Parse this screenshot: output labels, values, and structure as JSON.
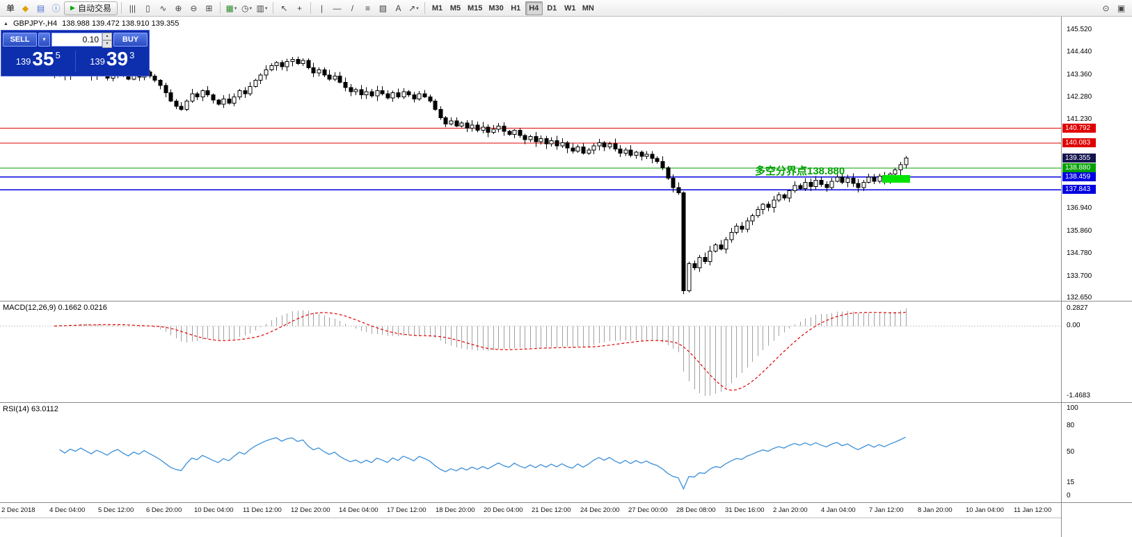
{
  "toolbar": {
    "items": [
      {
        "type": "text",
        "name": "order-menu-label",
        "label": "单"
      },
      {
        "type": "icon",
        "name": "new-order-icon",
        "glyph": "◆",
        "color": "#e0a000"
      },
      {
        "type": "icon",
        "name": "profiles-icon",
        "glyph": "▤",
        "color": "#4a6fd0"
      },
      {
        "type": "icon",
        "name": "info-icon",
        "glyph": "ⓘ",
        "color": "#3a6fd0"
      },
      {
        "type": "button",
        "name": "autotrade-button",
        "glyph": "▶",
        "glyph_color": "#00a800",
        "label": "自动交易"
      },
      {
        "type": "sep"
      },
      {
        "type": "icon",
        "name": "bar-chart-type-icon",
        "glyph": "|||"
      },
      {
        "type": "icon",
        "name": "candlestick-type-icon",
        "glyph": "▯"
      },
      {
        "type": "icon",
        "name": "line-chart-type-icon",
        "glyph": "∿"
      },
      {
        "type": "icon",
        "name": "zoom-in-icon",
        "glyph": "⊕"
      },
      {
        "type": "icon",
        "name": "zoom-out-icon",
        "glyph": "⊖"
      },
      {
        "type": "icon",
        "name": "tile-windows-icon",
        "glyph": "⊞"
      },
      {
        "type": "sep"
      },
      {
        "type": "icon",
        "name": "new-chart-icon",
        "glyph": "▦",
        "color": "#2e8b2e",
        "caret": true
      },
      {
        "type": "icon",
        "name": "period-icon",
        "glyph": "◷",
        "caret": true
      },
      {
        "type": "icon",
        "name": "template-icon",
        "glyph": "▥",
        "caret": true
      },
      {
        "type": "sep"
      },
      {
        "type": "icon",
        "name": "cursor-icon",
        "glyph": "↖"
      },
      {
        "type": "icon",
        "name": "crosshair-icon",
        "glyph": "+"
      },
      {
        "type": "sep"
      },
      {
        "type": "icon",
        "name": "vertical-line-icon",
        "glyph": "|"
      },
      {
        "type": "icon",
        "name": "horizontal-line-icon",
        "glyph": "—"
      },
      {
        "type": "icon",
        "name": "trendline-icon",
        "glyph": "/"
      },
      {
        "type": "icon",
        "name": "fibonacci-icon",
        "glyph": "≡"
      },
      {
        "type": "icon",
        "name": "shapes-icon",
        "glyph": "▧"
      },
      {
        "type": "icon",
        "name": "text-tool-icon",
        "glyph": "A"
      },
      {
        "type": "icon",
        "name": "arrow-tool-icon",
        "glyph": "↗",
        "caret": true
      },
      {
        "type": "sep"
      },
      {
        "type": "tf-group"
      }
    ],
    "timeframes": {
      "options": [
        "M1",
        "M5",
        "M15",
        "M30",
        "H1",
        "H4",
        "D1",
        "W1",
        "MN"
      ],
      "active": "H4"
    },
    "right_items": [
      {
        "type": "icon",
        "name": "search-icon",
        "glyph": "⊙"
      },
      {
        "type": "icon",
        "name": "new-window-icon",
        "glyph": "▣"
      }
    ]
  },
  "chart": {
    "collapse_icon": "▲",
    "title": "GBPJPY-,H4",
    "ohlc": "138.988 139.472 138.910 139.355"
  },
  "trade_panel": {
    "sell_label": "SELL",
    "buy_label": "BUY",
    "dropdown_icon": "▾",
    "lot": "0.10",
    "sell_prefix": "139",
    "sell_big": "35",
    "sell_sup": "5",
    "buy_prefix": "139",
    "buy_big": "39",
    "buy_sup": "3"
  },
  "annotation": {
    "text": "多空分界点138.880",
    "text_color": "#00a000",
    "marker_color": "#00e400"
  },
  "indicators": {
    "macd_label": "MACD(12,26,9) 0.1662 0.0216",
    "rsi_label": "RSI(14) 63.0112"
  },
  "chart_data": {
    "type": "candlestick",
    "symbol": "GBPJPY-",
    "timeframe": "H4",
    "last_bar": {
      "open": 138.988,
      "high": 139.472,
      "low": 138.91,
      "close": 139.355
    },
    "current_price": 139.355,
    "closes": [
      143.35,
      143.55,
      143.3,
      143.6,
      143.45,
      143.7,
      143.5,
      143.3,
      143.55,
      143.4,
      143.2,
      143.45,
      143.6,
      143.35,
      143.15,
      143.4,
      143.25,
      143.5,
      143.3,
      143.1,
      142.85,
      142.5,
      142.1,
      141.85,
      141.7,
      142.1,
      142.45,
      142.3,
      142.6,
      142.4,
      142.15,
      141.95,
      142.2,
      142.0,
      142.3,
      142.6,
      142.45,
      142.8,
      143.1,
      143.35,
      143.6,
      143.8,
      143.95,
      143.75,
      144.0,
      144.1,
      143.9,
      144.05,
      143.7,
      143.45,
      143.6,
      143.35,
      143.15,
      143.3,
      143.0,
      142.75,
      142.55,
      142.65,
      142.4,
      142.55,
      142.35,
      142.6,
      142.45,
      142.25,
      142.5,
      142.3,
      142.55,
      142.4,
      142.2,
      142.45,
      142.3,
      142.1,
      141.7,
      141.3,
      141.0,
      141.15,
      140.9,
      141.05,
      140.8,
      140.95,
      140.7,
      140.85,
      140.6,
      140.75,
      140.9,
      140.65,
      140.5,
      140.7,
      140.45,
      140.25,
      140.4,
      140.15,
      140.3,
      140.05,
      140.2,
      139.95,
      140.1,
      139.85,
      139.7,
      139.9,
      139.6,
      139.75,
      139.95,
      140.1,
      139.9,
      140.05,
      139.8,
      139.6,
      139.75,
      139.5,
      139.65,
      139.45,
      139.55,
      139.35,
      139.2,
      138.9,
      138.4,
      137.95,
      137.7,
      133.0,
      134.3,
      134.1,
      134.6,
      134.4,
      134.9,
      135.2,
      135.0,
      135.45,
      135.8,
      136.1,
      135.95,
      136.35,
      136.6,
      136.9,
      137.15,
      137.0,
      137.35,
      137.6,
      137.45,
      137.8,
      138.05,
      137.9,
      138.2,
      138.0,
      138.3,
      138.1,
      137.95,
      138.25,
      138.45,
      138.2,
      138.4,
      138.15,
      137.95,
      138.2,
      138.45,
      138.25,
      138.5,
      138.35,
      138.6,
      138.8,
      139.05,
      139.36
    ],
    "crash_low": 132.83,
    "hlines": [
      {
        "price": 140.792,
        "color": "#e00000",
        "w": 1
      },
      {
        "price": 140.083,
        "color": "#e00000",
        "w": 1
      },
      {
        "price": 138.88,
        "color": "#00a000",
        "w": 1
      },
      {
        "price": 138.459,
        "color": "#0000e0",
        "w": 1.4
      },
      {
        "price": 137.843,
        "color": "#0000e0",
        "w": 1.4
      }
    ],
    "price_axis": {
      "labels": [
        {
          "text": "145.520",
          "price": 145.52
        },
        {
          "text": "144.440",
          "price": 144.44
        },
        {
          "text": "143.360",
          "price": 143.36
        },
        {
          "text": "142.280",
          "price": 142.28
        },
        {
          "text": "141.230",
          "price": 141.23
        },
        {
          "text": "136.940",
          "price": 136.94
        },
        {
          "text": "135.860",
          "price": 135.86
        },
        {
          "text": "134.780",
          "price": 134.78
        },
        {
          "text": "133.700",
          "price": 133.7
        },
        {
          "text": "132.650",
          "price": 132.65
        }
      ],
      "badges": [
        {
          "text": "140.792",
          "price": 140.792,
          "bg": "#e00000"
        },
        {
          "text": "140.083",
          "price": 140.083,
          "bg": "#e00000"
        },
        {
          "text": "139.355",
          "price": 139.355,
          "bg": "#13134d"
        },
        {
          "text": "138.880",
          "price": 138.88,
          "bg": "#00a000"
        },
        {
          "text": "138.459",
          "price": 138.459,
          "bg": "#0000e0"
        },
        {
          "text": "137.843",
          "price": 137.843,
          "bg": "#0000e0"
        }
      ]
    },
    "macd": {
      "params": "12,26,9",
      "values": "0.1662 0.0216",
      "histogram_color": "#a0a0a0",
      "signal_color": "#e00000",
      "axis_labels": [
        {
          "text": "0.2827",
          "at": "max"
        },
        {
          "text": "0.00",
          "at": "zero"
        },
        {
          "text": "-1.4683",
          "at": "min"
        }
      ]
    },
    "rsi": {
      "period": 14,
      "value": 63.0112,
      "line_color": "#3a8fd8",
      "axis_labels": [
        {
          "text": "100",
          "v": 100
        },
        {
          "text": "80",
          "v": 80
        },
        {
          "text": "50",
          "v": 50
        },
        {
          "text": "15",
          "v": 15
        },
        {
          "text": "0",
          "v": 0
        }
      ]
    },
    "time_labels": [
      "2 Dec 2018",
      "4 Dec 04:00",
      "5 Dec 12:00",
      "6 Dec 20:00",
      "10 Dec 04:00",
      "11 Dec 12:00",
      "12 Dec 20:00",
      "14 Dec 04:00",
      "17 Dec 12:00",
      "18 Dec 20:00",
      "20 Dec 04:00",
      "21 Dec 12:00",
      "24 Dec 20:00",
      "27 Dec 00:00",
      "28 Dec 08:00",
      "31 Dec 16:00",
      "2 Jan 20:00",
      "4 Jan 04:00",
      "7 Jan 12:00",
      "8 Jan 20:00",
      "10 Jan 04:00",
      "11 Jan 12:00"
    ]
  }
}
